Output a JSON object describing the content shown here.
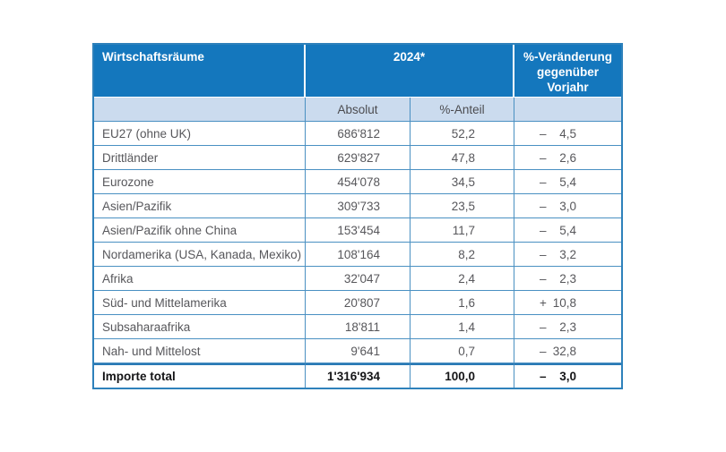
{
  "table": {
    "header": {
      "region_label": "Wirtschaftsräume",
      "year_label": "2024*",
      "change_label": "%-Veränderung gegenüber Vorjahr",
      "sub_absolut": "Absolut",
      "sub_anteil": "%-Anteil"
    },
    "rows": [
      {
        "name": "EU27 (ohne UK)",
        "absolut": "686'812",
        "anteil": "52,2",
        "sign": "–",
        "change": "4,5"
      },
      {
        "name": "Drittländer",
        "absolut": "629'827",
        "anteil": "47,8",
        "sign": "–",
        "change": "2,6"
      },
      {
        "name": "Eurozone",
        "absolut": "454'078",
        "anteil": "34,5",
        "sign": "–",
        "change": "5,4"
      },
      {
        "name": "Asien/Pazifik",
        "absolut": "309'733",
        "anteil": "23,5",
        "sign": "–",
        "change": "3,0"
      },
      {
        "name": "Asien/Pazifik ohne China",
        "absolut": "153'454",
        "anteil": "11,7",
        "sign": "–",
        "change": "5,4"
      },
      {
        "name": "Nordamerika (USA, Kanada, Mexiko)",
        "absolut": "108'164",
        "anteil": "8,2",
        "sign": "–",
        "change": "3,2"
      },
      {
        "name": "Afrika",
        "absolut": "32'047",
        "anteil": "2,4",
        "sign": "–",
        "change": "2,3"
      },
      {
        "name": "Süd- und Mittelamerika",
        "absolut": "20'807",
        "anteil": "1,6",
        "sign": "+",
        "change": "10,8"
      },
      {
        "name": "Subsaharaafrika",
        "absolut": "18'811",
        "anteil": "1,4",
        "sign": "–",
        "change": "2,3"
      },
      {
        "name": "Nah- und Mittelost",
        "absolut": "9'641",
        "anteil": "0,7",
        "sign": "–",
        "change": "32,8"
      }
    ],
    "total": {
      "name": "Importe total",
      "absolut": "1'316'934",
      "anteil": "100,0",
      "sign": "–",
      "change": "3,0"
    }
  },
  "colors": {
    "header_blue": "#1477bd",
    "subheader_light_blue": "#cbdbee",
    "grid_blue": "#4a90c2",
    "body_text_gray": "#57575b",
    "total_text": "#151517"
  }
}
